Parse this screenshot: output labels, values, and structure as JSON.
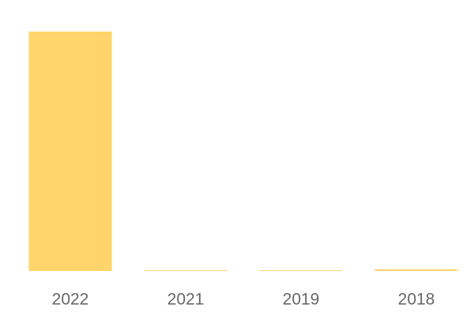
{
  "chart_data": {
    "type": "bar",
    "categories": [
      "2022",
      "2021",
      "2019",
      "2018"
    ],
    "values": [
      100,
      0.3,
      0.3,
      0.7
    ],
    "color": "#ffd56b",
    "ylim": [
      0,
      100
    ]
  }
}
